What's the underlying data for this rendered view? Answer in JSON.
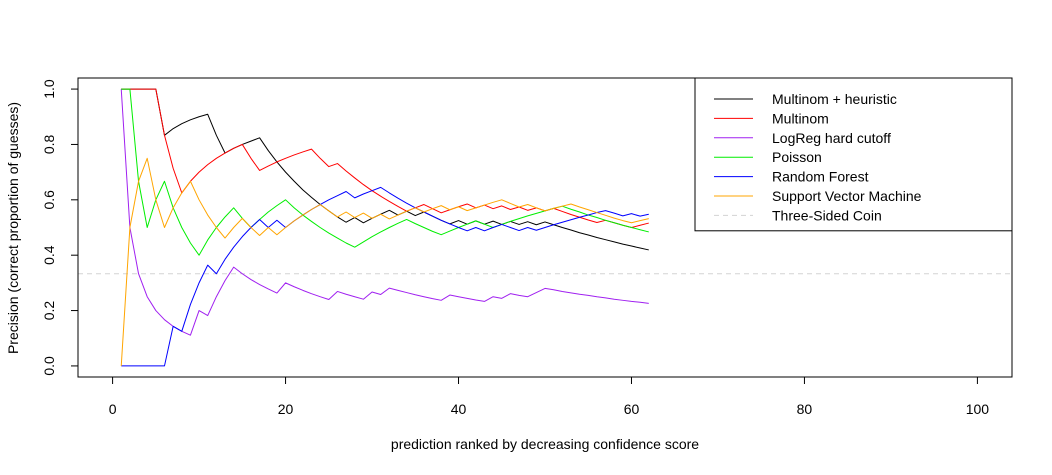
{
  "chart_data": {
    "type": "line",
    "title": "",
    "xlabel": "prediction ranked by decreasing confidence score",
    "ylabel": "Precision (correct proportion of guesses)",
    "xlim": [
      -4,
      104
    ],
    "ylim": [
      -0.04,
      1.04
    ],
    "xticks": [
      0,
      20,
      40,
      60,
      80,
      100
    ],
    "yticks": [
      0.0,
      0.2,
      0.4,
      0.6,
      0.8,
      1.0
    ],
    "xtick_labels": [
      "0",
      "20",
      "40",
      "60",
      "80",
      "100"
    ],
    "ytick_labels": [
      "0.0",
      "0.2",
      "0.4",
      "0.6",
      "0.8",
      "1.0"
    ],
    "legend_position": "top-right",
    "series": [
      {
        "name": "Multinom + heuristic",
        "color": "#000000",
        "dashed": false,
        "x": [
          1,
          2,
          3,
          4,
          5,
          6,
          7,
          8,
          9,
          10,
          11,
          12,
          13,
          14,
          15,
          16,
          17,
          18,
          19,
          20,
          21,
          22,
          23,
          24,
          25,
          26,
          27,
          28,
          29,
          30,
          31,
          32,
          33,
          34,
          35,
          36,
          37,
          38,
          39,
          40,
          41,
          42,
          43,
          44,
          45,
          46,
          47,
          48,
          49,
          50,
          51,
          52,
          53,
          54,
          55,
          56,
          57,
          58,
          59,
          60,
          61,
          62
        ],
        "y": [
          1.0,
          1.0,
          1.0,
          1.0,
          1.0,
          0.833,
          0.857,
          0.875,
          0.889,
          0.9,
          0.909,
          0.833,
          0.769,
          0.786,
          0.8,
          0.812,
          0.824,
          0.778,
          0.737,
          0.7,
          0.667,
          0.636,
          0.609,
          0.583,
          0.56,
          0.538,
          0.519,
          0.536,
          0.517,
          0.533,
          0.548,
          0.562,
          0.545,
          0.559,
          0.543,
          0.556,
          0.541,
          0.526,
          0.513,
          0.525,
          0.512,
          0.524,
          0.512,
          0.523,
          0.511,
          0.522,
          0.511,
          0.521,
          0.51,
          0.52,
          0.51,
          0.5,
          0.491,
          0.481,
          0.473,
          0.464,
          0.456,
          0.448,
          0.44,
          0.433,
          0.426,
          0.419
        ]
      },
      {
        "name": "Multinom",
        "color": "#ff0000",
        "dashed": false,
        "x": [
          1,
          2,
          3,
          4,
          5,
          6,
          7,
          8,
          9,
          10,
          11,
          12,
          13,
          14,
          15,
          16,
          17,
          18,
          19,
          20,
          21,
          22,
          23,
          24,
          25,
          26,
          27,
          28,
          29,
          30,
          31,
          32,
          33,
          34,
          35,
          36,
          37,
          38,
          39,
          40,
          41,
          42,
          43,
          44,
          45,
          46,
          47,
          48,
          49,
          50,
          51,
          52,
          53,
          54,
          55,
          56,
          57,
          58,
          59,
          60,
          61,
          62
        ],
        "y": [
          1.0,
          1.0,
          1.0,
          1.0,
          1.0,
          0.833,
          0.714,
          0.625,
          0.667,
          0.7,
          0.727,
          0.75,
          0.769,
          0.786,
          0.8,
          0.75,
          0.706,
          0.722,
          0.737,
          0.75,
          0.762,
          0.773,
          0.783,
          0.75,
          0.72,
          0.731,
          0.704,
          0.679,
          0.655,
          0.633,
          0.613,
          0.594,
          0.576,
          0.559,
          0.571,
          0.583,
          0.568,
          0.553,
          0.564,
          0.575,
          0.585,
          0.571,
          0.581,
          0.568,
          0.578,
          0.565,
          0.574,
          0.562,
          0.571,
          0.56,
          0.569,
          0.558,
          0.547,
          0.537,
          0.527,
          0.518,
          0.526,
          0.517,
          0.508,
          0.5,
          0.508,
          0.516
        ]
      },
      {
        "name": "LogReg hard cutoff",
        "color": "#a020f0",
        "dashed": false,
        "x": [
          1,
          2,
          3,
          4,
          5,
          6,
          7,
          8,
          9,
          10,
          11,
          12,
          13,
          14,
          15,
          16,
          17,
          18,
          19,
          20,
          21,
          22,
          23,
          24,
          25,
          26,
          27,
          28,
          29,
          30,
          31,
          32,
          33,
          34,
          35,
          36,
          37,
          38,
          39,
          40,
          41,
          42,
          43,
          44,
          45,
          46,
          47,
          48,
          49,
          50,
          51,
          52,
          53,
          54,
          55,
          56,
          57,
          58,
          59,
          60,
          61,
          62
        ],
        "y": [
          1.0,
          0.5,
          0.333,
          0.25,
          0.2,
          0.167,
          0.143,
          0.125,
          0.111,
          0.2,
          0.182,
          0.25,
          0.308,
          0.357,
          0.333,
          0.312,
          0.294,
          0.278,
          0.263,
          0.3,
          0.286,
          0.273,
          0.261,
          0.25,
          0.24,
          0.269,
          0.259,
          0.25,
          0.241,
          0.267,
          0.258,
          0.281,
          0.273,
          0.265,
          0.257,
          0.25,
          0.243,
          0.237,
          0.256,
          0.25,
          0.244,
          0.238,
          0.233,
          0.25,
          0.244,
          0.261,
          0.255,
          0.25,
          0.265,
          0.28,
          0.275,
          0.269,
          0.264,
          0.259,
          0.255,
          0.25,
          0.246,
          0.241,
          0.237,
          0.233,
          0.23,
          0.226
        ]
      },
      {
        "name": "Poisson",
        "color": "#00ee00",
        "dashed": false,
        "x": [
          1,
          2,
          3,
          4,
          5,
          6,
          7,
          8,
          9,
          10,
          11,
          12,
          13,
          14,
          15,
          16,
          17,
          18,
          19,
          20,
          21,
          22,
          23,
          24,
          25,
          26,
          27,
          28,
          29,
          30,
          31,
          32,
          33,
          34,
          35,
          36,
          37,
          38,
          39,
          40,
          41,
          42,
          43,
          44,
          45,
          46,
          47,
          48,
          49,
          50,
          51,
          52,
          53,
          54,
          55,
          56,
          57,
          58,
          59,
          60,
          61,
          62
        ],
        "y": [
          1.0,
          1.0,
          0.667,
          0.5,
          0.6,
          0.667,
          0.571,
          0.5,
          0.444,
          0.4,
          0.455,
          0.5,
          0.538,
          0.571,
          0.533,
          0.5,
          0.529,
          0.556,
          0.579,
          0.6,
          0.571,
          0.545,
          0.522,
          0.5,
          0.48,
          0.462,
          0.444,
          0.429,
          0.448,
          0.467,
          0.484,
          0.5,
          0.515,
          0.529,
          0.514,
          0.5,
          0.486,
          0.474,
          0.487,
          0.5,
          0.512,
          0.524,
          0.512,
          0.5,
          0.511,
          0.522,
          0.532,
          0.542,
          0.551,
          0.56,
          0.569,
          0.577,
          0.566,
          0.556,
          0.545,
          0.536,
          0.526,
          0.517,
          0.508,
          0.5,
          0.492,
          0.484
        ]
      },
      {
        "name": "Random Forest",
        "color": "#0000ff",
        "dashed": false,
        "x": [
          1,
          2,
          3,
          4,
          5,
          6,
          7,
          8,
          9,
          10,
          11,
          12,
          13,
          14,
          15,
          16,
          17,
          18,
          19,
          20,
          21,
          22,
          23,
          24,
          25,
          26,
          27,
          28,
          29,
          30,
          31,
          32,
          33,
          34,
          35,
          36,
          37,
          38,
          39,
          40,
          41,
          42,
          43,
          44,
          45,
          46,
          47,
          48,
          49,
          50,
          51,
          52,
          53,
          54,
          55,
          56,
          57,
          58,
          59,
          60,
          61,
          62
        ],
        "y": [
          0.0,
          0.0,
          0.0,
          0.0,
          0.0,
          0.0,
          0.143,
          0.125,
          0.222,
          0.3,
          0.364,
          0.333,
          0.385,
          0.429,
          0.467,
          0.5,
          0.529,
          0.5,
          0.526,
          0.5,
          0.524,
          0.545,
          0.565,
          0.583,
          0.6,
          0.615,
          0.63,
          0.607,
          0.621,
          0.633,
          0.645,
          0.625,
          0.606,
          0.588,
          0.571,
          0.556,
          0.541,
          0.526,
          0.513,
          0.5,
          0.488,
          0.5,
          0.488,
          0.5,
          0.511,
          0.5,
          0.489,
          0.5,
          0.49,
          0.5,
          0.51,
          0.519,
          0.528,
          0.537,
          0.545,
          0.554,
          0.561,
          0.552,
          0.542,
          0.55,
          0.541,
          0.548
        ]
      },
      {
        "name": "Support Vector Machine",
        "color": "#ffa500",
        "dashed": false,
        "x": [
          1,
          2,
          3,
          4,
          5,
          6,
          7,
          8,
          9,
          10,
          11,
          12,
          13,
          14,
          15,
          16,
          17,
          18,
          19,
          20,
          21,
          22,
          23,
          24,
          25,
          26,
          27,
          28,
          29,
          30,
          31,
          32,
          33,
          34,
          35,
          36,
          37,
          38,
          39,
          40,
          41,
          42,
          43,
          44,
          45,
          46,
          47,
          48,
          49,
          50,
          51,
          52,
          53,
          54,
          55,
          56,
          57,
          58,
          59,
          60,
          61,
          62
        ],
        "y": [
          0.0,
          0.5,
          0.667,
          0.75,
          0.6,
          0.5,
          0.571,
          0.625,
          0.667,
          0.6,
          0.545,
          0.5,
          0.462,
          0.5,
          0.533,
          0.5,
          0.471,
          0.5,
          0.474,
          0.5,
          0.524,
          0.545,
          0.565,
          0.583,
          0.56,
          0.538,
          0.556,
          0.536,
          0.552,
          0.533,
          0.548,
          0.531,
          0.545,
          0.559,
          0.571,
          0.556,
          0.568,
          0.579,
          0.564,
          0.575,
          0.561,
          0.571,
          0.581,
          0.591,
          0.6,
          0.587,
          0.574,
          0.583,
          0.571,
          0.56,
          0.569,
          0.577,
          0.585,
          0.574,
          0.564,
          0.554,
          0.544,
          0.534,
          0.525,
          0.517,
          0.525,
          0.532
        ]
      },
      {
        "name": "Three-Sided Coin",
        "color": "#d3d3d3",
        "dashed": true,
        "x": [
          -4,
          104
        ],
        "y": [
          0.333,
          0.333
        ]
      }
    ]
  }
}
